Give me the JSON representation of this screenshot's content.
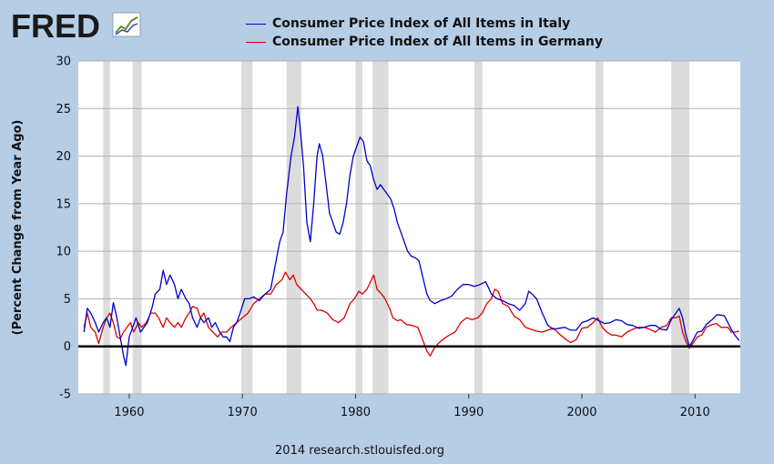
{
  "brand": {
    "name": "FRED",
    "logo_icon": "line-chart-icon"
  },
  "footer": "2014 research.stlouisfed.org",
  "chart_data": {
    "type": "line",
    "title": "",
    "xlabel": "",
    "ylabel": "(Percent Change from Year Ago)",
    "xlim": [
      1955.5,
      2014
    ],
    "ylim": [
      -5,
      30
    ],
    "yticks": [
      "30",
      "25",
      "20",
      "15",
      "10",
      "5",
      "0",
      "-5"
    ],
    "xticks": [
      "1960",
      "1970",
      "1980",
      "1990",
      "2000",
      "2010"
    ],
    "grid": "horizontal",
    "legend": "top",
    "zero_line": true,
    "recessions": [
      [
        1957.7,
        1958.3
      ],
      [
        1960.3,
        1961.1
      ],
      [
        1969.9,
        1970.9
      ],
      [
        1973.9,
        1975.2
      ],
      [
        1980.0,
        1980.6
      ],
      [
        1981.5,
        1982.9
      ],
      [
        1990.5,
        1991.2
      ],
      [
        2001.2,
        2001.9
      ],
      [
        2007.9,
        2009.5
      ]
    ],
    "series": [
      {
        "name": "Consumer Price Index of All Items in Italy",
        "color": "#0000cc",
        "points": [
          [
            1956.0,
            1.5
          ],
          [
            1956.3,
            4.0
          ],
          [
            1956.6,
            3.5
          ],
          [
            1957.0,
            2.5
          ],
          [
            1957.3,
            1.5
          ],
          [
            1957.7,
            2.5
          ],
          [
            1958.0,
            3.0
          ],
          [
            1958.3,
            2.0
          ],
          [
            1958.6,
            4.6
          ],
          [
            1958.9,
            3.0
          ],
          [
            1959.2,
            1.0
          ],
          [
            1959.5,
            -1.0
          ],
          [
            1959.7,
            -2.0
          ],
          [
            1960.0,
            1.0
          ],
          [
            1960.3,
            2.0
          ],
          [
            1960.6,
            3.0
          ],
          [
            1961.0,
            1.5
          ],
          [
            1961.3,
            2.0
          ],
          [
            1961.6,
            2.5
          ],
          [
            1962.0,
            4.0
          ],
          [
            1962.3,
            5.5
          ],
          [
            1962.7,
            6.0
          ],
          [
            1963.0,
            8.0
          ],
          [
            1963.3,
            6.5
          ],
          [
            1963.6,
            7.5
          ],
          [
            1964.0,
            6.5
          ],
          [
            1964.3,
            5.0
          ],
          [
            1964.6,
            6.0
          ],
          [
            1965.0,
            5.0
          ],
          [
            1965.3,
            4.5
          ],
          [
            1965.6,
            3.0
          ],
          [
            1966.0,
            2.0
          ],
          [
            1966.3,
            3.0
          ],
          [
            1966.6,
            2.5
          ],
          [
            1967.0,
            3.0
          ],
          [
            1967.3,
            2.0
          ],
          [
            1967.6,
            2.5
          ],
          [
            1968.0,
            1.5
          ],
          [
            1968.3,
            1.0
          ],
          [
            1968.6,
            1.0
          ],
          [
            1968.9,
            0.5
          ],
          [
            1969.2,
            2.0
          ],
          [
            1969.5,
            2.5
          ],
          [
            1969.8,
            3.5
          ],
          [
            1970.2,
            5.0
          ],
          [
            1970.6,
            5.0
          ],
          [
            1971.0,
            5.2
          ],
          [
            1971.5,
            4.8
          ],
          [
            1972.0,
            5.5
          ],
          [
            1972.5,
            6.0
          ],
          [
            1972.9,
            8.5
          ],
          [
            1973.3,
            11.0
          ],
          [
            1973.6,
            12.0
          ],
          [
            1973.9,
            16.0
          ],
          [
            1974.3,
            20.0
          ],
          [
            1974.6,
            22.0
          ],
          [
            1974.9,
            25.2
          ],
          [
            1975.1,
            23.0
          ],
          [
            1975.4,
            19.0
          ],
          [
            1975.7,
            13.0
          ],
          [
            1976.0,
            11.0
          ],
          [
            1976.3,
            15.0
          ],
          [
            1976.6,
            20.0
          ],
          [
            1976.8,
            21.3
          ],
          [
            1977.1,
            20.0
          ],
          [
            1977.4,
            17.0
          ],
          [
            1977.7,
            14.0
          ],
          [
            1978.0,
            13.0
          ],
          [
            1978.3,
            12.0
          ],
          [
            1978.6,
            11.8
          ],
          [
            1978.9,
            13.0
          ],
          [
            1979.2,
            15.0
          ],
          [
            1979.5,
            18.0
          ],
          [
            1979.8,
            20.0
          ],
          [
            1980.1,
            21.0
          ],
          [
            1980.4,
            22.0
          ],
          [
            1980.7,
            21.5
          ],
          [
            1981.0,
            19.5
          ],
          [
            1981.3,
            19.0
          ],
          [
            1981.6,
            17.5
          ],
          [
            1981.9,
            16.5
          ],
          [
            1982.2,
            17.0
          ],
          [
            1982.5,
            16.5
          ],
          [
            1982.8,
            16.0
          ],
          [
            1983.1,
            15.5
          ],
          [
            1983.4,
            14.5
          ],
          [
            1983.7,
            13.0
          ],
          [
            1984.0,
            12.0
          ],
          [
            1984.3,
            11.0
          ],
          [
            1984.6,
            10.0
          ],
          [
            1984.9,
            9.5
          ],
          [
            1985.3,
            9.3
          ],
          [
            1985.6,
            9.0
          ],
          [
            1986.0,
            7.0
          ],
          [
            1986.3,
            5.5
          ],
          [
            1986.6,
            4.8
          ],
          [
            1987.0,
            4.5
          ],
          [
            1987.5,
            4.8
          ],
          [
            1988.0,
            5.0
          ],
          [
            1988.5,
            5.3
          ],
          [
            1989.0,
            6.0
          ],
          [
            1989.5,
            6.5
          ],
          [
            1990.0,
            6.5
          ],
          [
            1990.5,
            6.3
          ],
          [
            1991.0,
            6.5
          ],
          [
            1991.5,
            6.8
          ],
          [
            1992.0,
            5.5
          ],
          [
            1992.5,
            5.0
          ],
          [
            1993.0,
            4.8
          ],
          [
            1993.5,
            4.5
          ],
          [
            1994.0,
            4.3
          ],
          [
            1994.5,
            3.8
          ],
          [
            1995.0,
            4.5
          ],
          [
            1995.3,
            5.8
          ],
          [
            1995.6,
            5.5
          ],
          [
            1996.0,
            5.0
          ],
          [
            1996.5,
            3.5
          ],
          [
            1997.0,
            2.2
          ],
          [
            1997.5,
            1.8
          ],
          [
            1998.0,
            1.9
          ],
          [
            1998.5,
            2.0
          ],
          [
            1999.0,
            1.7
          ],
          [
            1999.5,
            1.7
          ],
          [
            2000.0,
            2.5
          ],
          [
            2000.5,
            2.7
          ],
          [
            2001.0,
            3.0
          ],
          [
            2001.5,
            2.7
          ],
          [
            2002.0,
            2.4
          ],
          [
            2002.5,
            2.5
          ],
          [
            2003.0,
            2.8
          ],
          [
            2003.5,
            2.7
          ],
          [
            2004.0,
            2.3
          ],
          [
            2004.5,
            2.2
          ],
          [
            2005.0,
            1.9
          ],
          [
            2005.5,
            2.0
          ],
          [
            2006.0,
            2.2
          ],
          [
            2006.5,
            2.2
          ],
          [
            2007.0,
            1.8
          ],
          [
            2007.5,
            1.7
          ],
          [
            2007.9,
            2.8
          ],
          [
            2008.3,
            3.5
          ],
          [
            2008.6,
            4.0
          ],
          [
            2008.9,
            3.0
          ],
          [
            2009.2,
            1.2
          ],
          [
            2009.5,
            0.0
          ],
          [
            2009.8,
            0.6
          ],
          [
            2010.2,
            1.5
          ],
          [
            2010.6,
            1.6
          ],
          [
            2011.0,
            2.3
          ],
          [
            2011.5,
            2.8
          ],
          [
            2011.9,
            3.3
          ],
          [
            2012.3,
            3.3
          ],
          [
            2012.6,
            3.2
          ],
          [
            2012.9,
            2.5
          ],
          [
            2013.2,
            1.8
          ],
          [
            2013.5,
            1.2
          ],
          [
            2013.9,
            0.6
          ]
        ]
      },
      {
        "name": "Consumer Price Index of All Items in Germany",
        "color": "#dd0000",
        "points": [
          [
            1956.0,
            2.0
          ],
          [
            1956.3,
            3.5
          ],
          [
            1956.6,
            2.0
          ],
          [
            1957.0,
            1.5
          ],
          [
            1957.3,
            0.3
          ],
          [
            1957.7,
            2.0
          ],
          [
            1958.0,
            3.0
          ],
          [
            1958.3,
            3.5
          ],
          [
            1958.6,
            2.5
          ],
          [
            1958.9,
            1.0
          ],
          [
            1959.2,
            0.8
          ],
          [
            1959.5,
            1.5
          ],
          [
            1959.8,
            2.0
          ],
          [
            1960.1,
            2.5
          ],
          [
            1960.4,
            1.5
          ],
          [
            1960.8,
            2.5
          ],
          [
            1961.1,
            2.0
          ],
          [
            1961.5,
            2.5
          ],
          [
            1961.9,
            3.5
          ],
          [
            1962.3,
            3.5
          ],
          [
            1962.6,
            3.0
          ],
          [
            1963.0,
            2.0
          ],
          [
            1963.3,
            3.0
          ],
          [
            1963.6,
            2.5
          ],
          [
            1964.0,
            2.0
          ],
          [
            1964.3,
            2.5
          ],
          [
            1964.6,
            2.0
          ],
          [
            1965.0,
            3.0
          ],
          [
            1965.3,
            3.5
          ],
          [
            1965.6,
            4.2
          ],
          [
            1966.0,
            4.0
          ],
          [
            1966.3,
            3.0
          ],
          [
            1966.6,
            3.5
          ],
          [
            1967.0,
            2.0
          ],
          [
            1967.4,
            1.5
          ],
          [
            1967.8,
            1.0
          ],
          [
            1968.2,
            1.5
          ],
          [
            1968.6,
            1.5
          ],
          [
            1969.0,
            2.0
          ],
          [
            1969.5,
            2.5
          ],
          [
            1970.0,
            3.0
          ],
          [
            1970.5,
            3.5
          ],
          [
            1971.0,
            4.5
          ],
          [
            1971.5,
            5.0
          ],
          [
            1972.0,
            5.5
          ],
          [
            1972.5,
            5.5
          ],
          [
            1973.0,
            6.5
          ],
          [
            1973.5,
            7.0
          ],
          [
            1973.8,
            7.8
          ],
          [
            1974.2,
            7.0
          ],
          [
            1974.5,
            7.5
          ],
          [
            1974.8,
            6.5
          ],
          [
            1975.2,
            6.0
          ],
          [
            1975.6,
            5.5
          ],
          [
            1976.0,
            5.0
          ],
          [
            1976.3,
            4.5
          ],
          [
            1976.6,
            3.8
          ],
          [
            1977.0,
            3.8
          ],
          [
            1977.5,
            3.5
          ],
          [
            1978.0,
            2.8
          ],
          [
            1978.5,
            2.5
          ],
          [
            1979.0,
            3.0
          ],
          [
            1979.5,
            4.5
          ],
          [
            1979.9,
            5.0
          ],
          [
            1980.3,
            5.8
          ],
          [
            1980.6,
            5.5
          ],
          [
            1981.0,
            6.0
          ],
          [
            1981.4,
            7.0
          ],
          [
            1981.6,
            7.5
          ],
          [
            1981.9,
            6.0
          ],
          [
            1982.3,
            5.5
          ],
          [
            1982.6,
            5.0
          ],
          [
            1983.0,
            4.0
          ],
          [
            1983.3,
            3.0
          ],
          [
            1983.7,
            2.7
          ],
          [
            1984.0,
            2.8
          ],
          [
            1984.5,
            2.3
          ],
          [
            1985.0,
            2.2
          ],
          [
            1985.5,
            2.0
          ],
          [
            1986.0,
            0.5
          ],
          [
            1986.3,
            -0.5
          ],
          [
            1986.6,
            -1.0
          ],
          [
            1986.9,
            -0.3
          ],
          [
            1987.3,
            0.3
          ],
          [
            1987.8,
            0.8
          ],
          [
            1988.3,
            1.2
          ],
          [
            1988.8,
            1.5
          ],
          [
            1989.3,
            2.5
          ],
          [
            1989.8,
            3.0
          ],
          [
            1990.3,
            2.8
          ],
          [
            1990.8,
            3.0
          ],
          [
            1991.2,
            3.5
          ],
          [
            1991.6,
            4.5
          ],
          [
            1992.0,
            5.0
          ],
          [
            1992.3,
            6.0
          ],
          [
            1992.6,
            5.8
          ],
          [
            1993.0,
            4.5
          ],
          [
            1993.5,
            4.2
          ],
          [
            1994.0,
            3.2
          ],
          [
            1994.5,
            2.8
          ],
          [
            1995.0,
            2.0
          ],
          [
            1995.5,
            1.8
          ],
          [
            1996.0,
            1.6
          ],
          [
            1996.5,
            1.5
          ],
          [
            1997.0,
            1.7
          ],
          [
            1997.5,
            1.9
          ],
          [
            1998.0,
            1.3
          ],
          [
            1998.5,
            0.8
          ],
          [
            1999.0,
            0.4
          ],
          [
            1999.5,
            0.7
          ],
          [
            2000.0,
            1.9
          ],
          [
            2000.5,
            2.0
          ],
          [
            2001.0,
            2.5
          ],
          [
            2001.4,
            3.0
          ],
          [
            2001.8,
            2.0
          ],
          [
            2002.2,
            1.5
          ],
          [
            2002.6,
            1.2
          ],
          [
            2003.0,
            1.2
          ],
          [
            2003.5,
            1.0
          ],
          [
            2004.0,
            1.5
          ],
          [
            2004.5,
            1.8
          ],
          [
            2005.0,
            2.0
          ],
          [
            2005.5,
            2.0
          ],
          [
            2006.0,
            1.8
          ],
          [
            2006.5,
            1.5
          ],
          [
            2007.0,
            2.0
          ],
          [
            2007.5,
            2.2
          ],
          [
            2007.9,
            3.0
          ],
          [
            2008.3,
            3.0
          ],
          [
            2008.6,
            3.2
          ],
          [
            2008.9,
            1.5
          ],
          [
            2009.2,
            0.5
          ],
          [
            2009.5,
            -0.2
          ],
          [
            2009.8,
            0.3
          ],
          [
            2010.2,
            1.0
          ],
          [
            2010.6,
            1.2
          ],
          [
            2011.0,
            2.0
          ],
          [
            2011.5,
            2.3
          ],
          [
            2011.9,
            2.4
          ],
          [
            2012.3,
            2.0
          ],
          [
            2012.6,
            2.0
          ],
          [
            2012.9,
            2.0
          ],
          [
            2013.2,
            1.5
          ],
          [
            2013.5,
            1.5
          ],
          [
            2013.9,
            1.6
          ]
        ]
      }
    ]
  }
}
